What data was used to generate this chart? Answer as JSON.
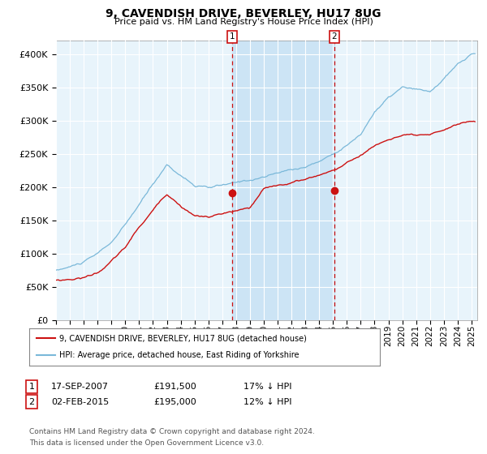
{
  "title": "9, CAVENDISH DRIVE, BEVERLEY, HU17 8UG",
  "subtitle": "Price paid vs. HM Land Registry's House Price Index (HPI)",
  "ylim": [
    0,
    420000
  ],
  "yticks": [
    0,
    50000,
    100000,
    150000,
    200000,
    250000,
    300000,
    350000,
    400000
  ],
  "ytick_labels": [
    "£0",
    "£50K",
    "£100K",
    "£150K",
    "£200K",
    "£250K",
    "£300K",
    "£350K",
    "£400K"
  ],
  "hpi_color": "#7ab8d9",
  "property_color": "#cc1111",
  "sale1_year": 2007,
  "sale1_month": 9,
  "sale1_day": 17,
  "sale1_price": 191500,
  "sale2_year": 2015,
  "sale2_month": 2,
  "sale2_day": 2,
  "sale2_price": 195000,
  "legend_property": "9, CAVENDISH DRIVE, BEVERLEY, HU17 8UG (detached house)",
  "legend_hpi": "HPI: Average price, detached house, East Riding of Yorkshire",
  "table_row1": [
    "1",
    "17-SEP-2007",
    "£191,500",
    "17% ↓ HPI"
  ],
  "table_row2": [
    "2",
    "02-FEB-2015",
    "£195,000",
    "12% ↓ HPI"
  ],
  "footnote1": "Contains HM Land Registry data © Crown copyright and database right 2024.",
  "footnote2": "This data is licensed under the Open Government Licence v3.0.",
  "bg_color": "#ffffff",
  "plot_bg_color": "#e8f4fb",
  "grid_color": "#ffffff",
  "shade_color": "#cce4f5"
}
